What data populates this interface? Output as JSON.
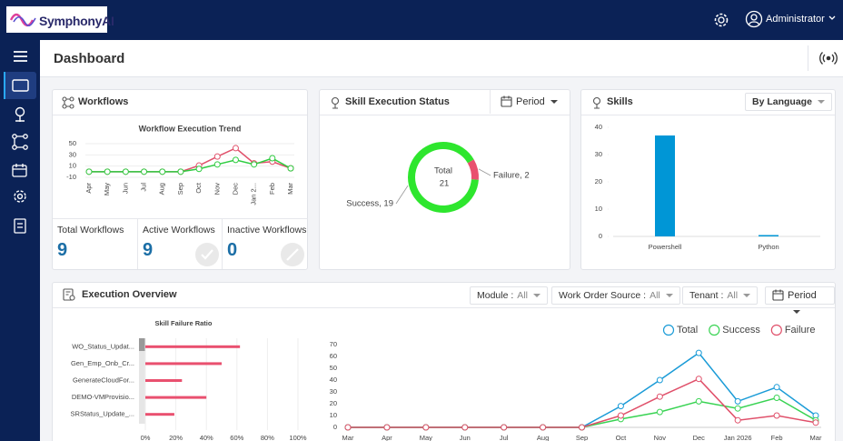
{
  "header": {
    "brand": "SymphonyAI",
    "user": "Administrator"
  },
  "page_title": "Dashboard",
  "workflows": {
    "title": "Workflows",
    "stats": [
      {
        "label": "Total Workflows",
        "value": 9
      },
      {
        "label": "Active Workflows",
        "value": 9
      },
      {
        "label": "Inactive Workflows",
        "value": 0
      }
    ]
  },
  "skill_execution_status": {
    "title": "Skill Execution Status",
    "period": "Period"
  },
  "skills": {
    "title": "Skills",
    "group_by": "By Language"
  },
  "execution_overview": {
    "title": "Execution Overview",
    "filters": [
      {
        "label": "Module :",
        "value": "All"
      },
      {
        "label": "Work Order Source :",
        "value": "All"
      },
      {
        "label": "Tenant :",
        "value": "All"
      }
    ],
    "period": "Period"
  },
  "chart_data": [
    {
      "type": "line",
      "title": "Workflow Execution Trend",
      "categories": [
        "Apr",
        "May",
        "Jun",
        "Jul",
        "Aug",
        "Sep",
        "Oct",
        "Nov",
        "Dec",
        "Jan 2...",
        "Feb",
        "Mar"
      ],
      "series": [
        {
          "color": "#e0506a",
          "values": [
            0,
            0,
            0,
            0,
            0,
            0,
            11,
            27,
            42,
            15,
            18,
            6
          ]
        },
        {
          "color": "#2ecc40",
          "values": [
            0,
            0,
            0,
            0,
            0,
            0,
            5,
            13,
            21,
            13,
            24,
            6
          ]
        }
      ],
      "ylim": [
        -10,
        50
      ],
      "yticks": [
        -10,
        10,
        30,
        50
      ],
      "grid": true
    },
    {
      "type": "donut",
      "categories": [
        "Success",
        "Failure"
      ],
      "values": [
        19,
        2
      ],
      "value_labels": [
        "Success, 19",
        "Failure, 2"
      ],
      "colors": [
        "#2ee62e",
        "#e9506f"
      ],
      "center_label": "Total",
      "total": 21
    },
    {
      "type": "bar",
      "categories": [
        "Powershell",
        "Python"
      ],
      "values": [
        37,
        0.5
      ],
      "color": "#0096d6",
      "ylim": [
        0,
        40
      ],
      "yticks": [
        0,
        10,
        20,
        30,
        40
      ]
    },
    {
      "type": "hbar",
      "title": "Skill Failure Ratio",
      "categories": [
        "WO_Status_Updat...",
        "Gen_Emp_Onb_Cr...",
        "GenerateCloudFor...",
        "DEMO-VMProvisio...",
        "SRStatus_Update_..."
      ],
      "values": [
        62,
        50,
        24,
        40,
        19
      ],
      "color": "#e9506f",
      "xlim": [
        0,
        100
      ],
      "xticks": [
        {
          "value": 0,
          "label": "0%"
        },
        {
          "value": 20,
          "label": "20%"
        },
        {
          "value": 40,
          "label": "40%"
        },
        {
          "value": 60,
          "label": "60%"
        },
        {
          "value": 80,
          "label": "80%"
        },
        {
          "value": 100,
          "label": "100%"
        }
      ],
      "grid": true
    },
    {
      "type": "line",
      "categories": [
        "Mar",
        "Apr",
        "May",
        "Jun",
        "Jul",
        "Aug",
        "Sep",
        "Oct",
        "Nov",
        "Dec",
        "Jan 2026",
        "Feb",
        "Mar"
      ],
      "series": [
        {
          "name": "Total",
          "color": "#1a9bd7",
          "values": [
            0,
            0,
            0,
            0,
            0,
            0,
            0,
            18,
            40,
            63,
            22,
            34,
            10
          ]
        },
        {
          "name": "Success",
          "color": "#39d353",
          "values": [
            0,
            0,
            0,
            0,
            0,
            0,
            0,
            7,
            13,
            22,
            16,
            25,
            6
          ]
        },
        {
          "name": "Failure",
          "color": "#e0506a",
          "values": [
            0,
            0,
            0,
            0,
            0,
            0,
            0,
            10,
            26,
            41,
            6,
            10,
            4
          ]
        }
      ],
      "ylim": [
        0,
        70
      ],
      "yticks": [
        0,
        10,
        20,
        30,
        40,
        50,
        60,
        70
      ],
      "grid": false,
      "legend": "top-right"
    }
  ]
}
